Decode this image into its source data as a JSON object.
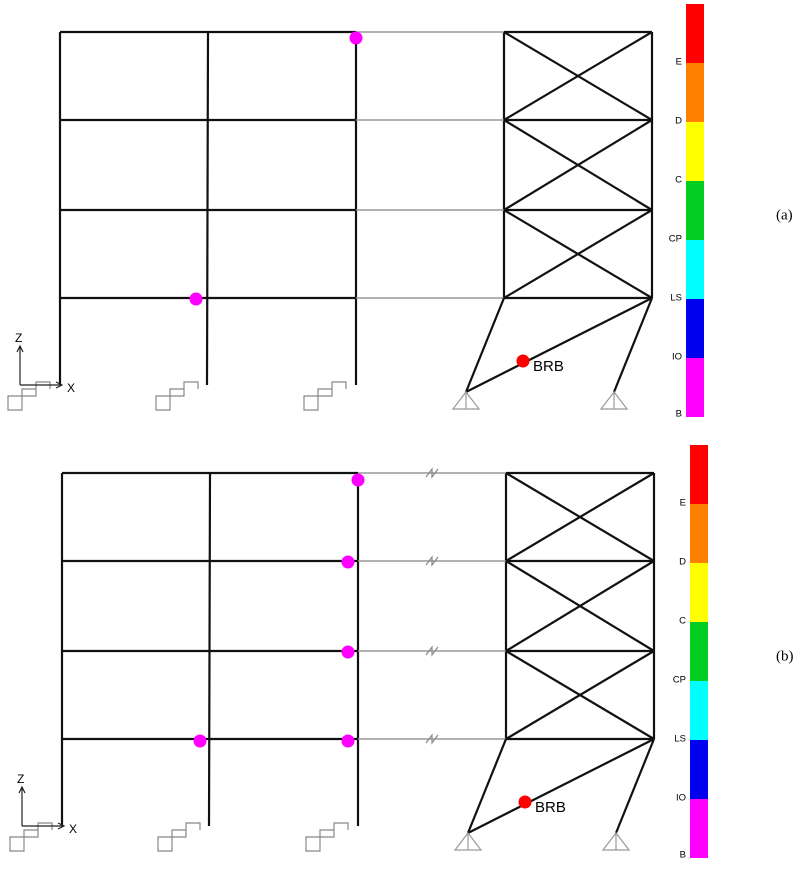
{
  "panels": [
    {
      "label": "(a)",
      "axis": {
        "z": "Z",
        "x": "X"
      },
      "brace_label": "BRB",
      "legend": [
        {
          "label": "E",
          "color": "#ff0000"
        },
        {
          "label": "D",
          "color": "#ff8000"
        },
        {
          "label": "C",
          "color": "#ffff00"
        },
        {
          "label": "CP",
          "color": "#00cc22"
        },
        {
          "label": "LS",
          "color": "#00ffff"
        },
        {
          "label": "IO",
          "color": "#0000ee"
        },
        {
          "label": "B",
          "color": "#ff00ff"
        }
      ]
    },
    {
      "label": "(b)",
      "axis": {
        "z": "Z",
        "x": "X"
      },
      "brace_label": "BRB",
      "legend": [
        {
          "label": "E",
          "color": "#ff0000"
        },
        {
          "label": "D",
          "color": "#ff8000"
        },
        {
          "label": "C",
          "color": "#ffff00"
        },
        {
          "label": "CP",
          "color": "#00cc22"
        },
        {
          "label": "LS",
          "color": "#00ffff"
        },
        {
          "label": "IO",
          "color": "#0000ee"
        },
        {
          "label": "B",
          "color": "#ff00ff"
        }
      ]
    }
  ]
}
